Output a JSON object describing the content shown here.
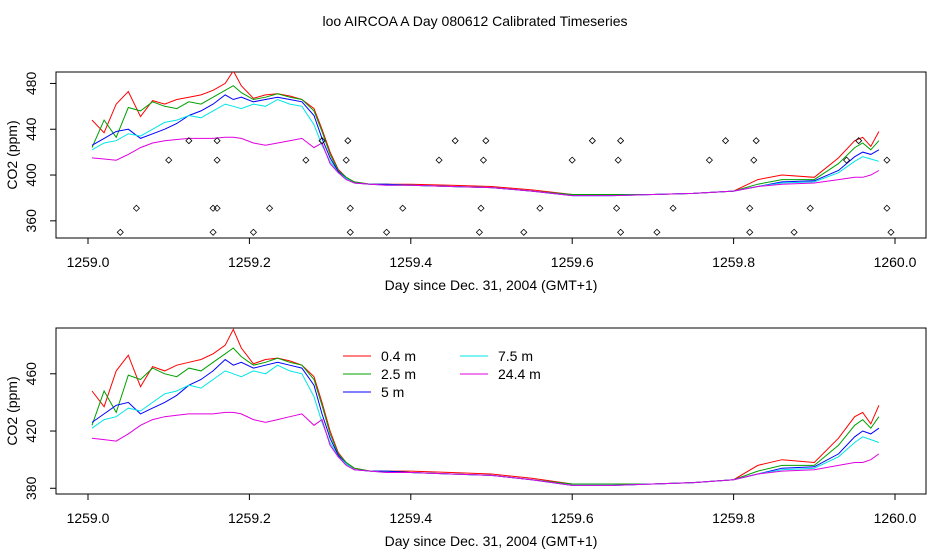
{
  "title": "loo AIRCOA A  Day 080612  Calibrated Timeseries",
  "colors": {
    "0.4 m": "#ff0000",
    "2.5 m": "#00a000",
    "5 m": "#0000ff",
    "7.5 m": "#00e5e5",
    "24.4 m": "#e000e0"
  },
  "chart_data": [
    {
      "type": "line",
      "xlabel": "Day since Dec. 31, 2004 (GMT+1)",
      "ylabel": "CO2 (ppm)",
      "xlim": [
        1259.0,
        1260.0
      ],
      "ylim": [
        345,
        490
      ],
      "xticks": [
        "1259.0",
        "1259.2",
        "1259.4",
        "1259.6",
        "1259.8",
        "1260.0"
      ],
      "yticks": [
        "360",
        "400",
        "440",
        "480"
      ],
      "grid": false,
      "legend": null,
      "series": [
        {
          "name": "0.4 m",
          "x": [
            1259.005,
            1259.02,
            1259.035,
            1259.05,
            1259.065,
            1259.08,
            1259.095,
            1259.11,
            1259.125,
            1259.14,
            1259.155,
            1259.17,
            1259.18,
            1259.19,
            1259.205,
            1259.22,
            1259.235,
            1259.25,
            1259.265,
            1259.28,
            1259.29,
            1259.3,
            1259.31,
            1259.32,
            1259.33,
            1259.35,
            1259.37,
            1259.4,
            1259.45,
            1259.5,
            1259.55,
            1259.6,
            1259.65,
            1259.7,
            1259.75,
            1259.8,
            1259.83,
            1259.86,
            1259.9,
            1259.93,
            1259.95,
            1259.96,
            1259.97,
            1259.98
          ],
          "y": [
            448,
            437,
            462,
            473,
            451,
            465,
            462,
            466,
            468,
            470,
            474,
            480,
            491,
            478,
            467,
            470,
            471,
            469,
            466,
            458,
            440,
            420,
            405,
            398,
            394,
            392,
            392,
            392,
            391,
            390,
            387,
            383,
            383,
            383,
            384,
            386,
            396,
            400,
            398,
            415,
            430,
            433,
            425,
            438
          ]
        },
        {
          "name": "2.5 m",
          "x": [
            1259.005,
            1259.02,
            1259.035,
            1259.05,
            1259.065,
            1259.08,
            1259.095,
            1259.11,
            1259.125,
            1259.14,
            1259.155,
            1259.17,
            1259.18,
            1259.19,
            1259.205,
            1259.22,
            1259.235,
            1259.25,
            1259.265,
            1259.28,
            1259.29,
            1259.3,
            1259.31,
            1259.32,
            1259.33,
            1259.35,
            1259.37,
            1259.4,
            1259.45,
            1259.5,
            1259.55,
            1259.6,
            1259.65,
            1259.7,
            1259.75,
            1259.8,
            1259.83,
            1259.86,
            1259.9,
            1259.93,
            1259.95,
            1259.96,
            1259.97,
            1259.98
          ],
          "y": [
            424,
            448,
            433,
            459,
            456,
            464,
            460,
            458,
            464,
            462,
            468,
            474,
            478,
            472,
            466,
            468,
            471,
            468,
            466,
            456,
            438,
            418,
            404,
            398,
            394,
            392,
            392,
            391,
            390,
            389,
            386,
            383,
            383,
            383,
            384,
            386,
            392,
            396,
            396,
            410,
            424,
            428,
            422,
            430
          ]
        },
        {
          "name": "5 m",
          "x": [
            1259.005,
            1259.02,
            1259.035,
            1259.05,
            1259.065,
            1259.08,
            1259.095,
            1259.11,
            1259.125,
            1259.14,
            1259.155,
            1259.17,
            1259.18,
            1259.19,
            1259.205,
            1259.22,
            1259.235,
            1259.25,
            1259.265,
            1259.28,
            1259.29,
            1259.3,
            1259.31,
            1259.32,
            1259.33,
            1259.35,
            1259.37,
            1259.4,
            1259.45,
            1259.5,
            1259.55,
            1259.6,
            1259.65,
            1259.7,
            1259.75,
            1259.8,
            1259.83,
            1259.86,
            1259.9,
            1259.93,
            1259.95,
            1259.96,
            1259.97,
            1259.98
          ],
          "y": [
            426,
            432,
            438,
            440,
            432,
            436,
            440,
            445,
            452,
            456,
            462,
            470,
            466,
            468,
            464,
            466,
            468,
            466,
            464,
            452,
            432,
            415,
            403,
            397,
            393,
            392,
            392,
            391,
            390,
            389,
            386,
            382,
            382,
            383,
            384,
            386,
            390,
            394,
            395,
            404,
            416,
            420,
            418,
            422
          ]
        },
        {
          "name": "7.5 m",
          "x": [
            1259.005,
            1259.02,
            1259.035,
            1259.05,
            1259.065,
            1259.08,
            1259.095,
            1259.11,
            1259.125,
            1259.14,
            1259.155,
            1259.17,
            1259.18,
            1259.19,
            1259.205,
            1259.22,
            1259.235,
            1259.25,
            1259.265,
            1259.28,
            1259.29,
            1259.3,
            1259.31,
            1259.32,
            1259.33,
            1259.35,
            1259.37,
            1259.4,
            1259.45,
            1259.5,
            1259.55,
            1259.6,
            1259.65,
            1259.7,
            1259.75,
            1259.8,
            1259.83,
            1259.86,
            1259.9,
            1259.93,
            1259.95,
            1259.96,
            1259.97,
            1259.98
          ],
          "y": [
            422,
            428,
            430,
            436,
            434,
            440,
            446,
            448,
            452,
            450,
            456,
            462,
            460,
            458,
            462,
            460,
            466,
            462,
            460,
            444,
            426,
            412,
            402,
            397,
            393,
            392,
            391,
            391,
            390,
            389,
            386,
            382,
            382,
            383,
            384,
            386,
            390,
            393,
            394,
            402,
            412,
            416,
            414,
            412
          ]
        },
        {
          "name": "24.4 m",
          "x": [
            1259.005,
            1259.02,
            1259.035,
            1259.05,
            1259.065,
            1259.08,
            1259.095,
            1259.11,
            1259.125,
            1259.14,
            1259.155,
            1259.17,
            1259.18,
            1259.19,
            1259.205,
            1259.22,
            1259.235,
            1259.25,
            1259.265,
            1259.28,
            1259.29,
            1259.3,
            1259.31,
            1259.32,
            1259.33,
            1259.35,
            1259.37,
            1259.4,
            1259.45,
            1259.5,
            1259.55,
            1259.6,
            1259.65,
            1259.7,
            1259.75,
            1259.8,
            1259.83,
            1259.86,
            1259.9,
            1259.93,
            1259.95,
            1259.96,
            1259.97,
            1259.98
          ],
          "y": [
            415,
            414,
            413,
            418,
            424,
            428,
            430,
            431,
            432,
            432,
            432,
            433,
            433,
            432,
            428,
            426,
            428,
            430,
            432,
            424,
            428,
            410,
            402,
            396,
            393,
            392,
            391,
            391,
            390,
            389,
            386,
            382,
            382,
            383,
            384,
            386,
            390,
            392,
            393,
            396,
            398,
            398,
            400,
            404
          ]
        }
      ],
      "markers": {
        "symbol": "open-diamond",
        "x": [
          1259.04,
          1259.06,
          1259.1,
          1259.125,
          1259.155,
          1259.155,
          1259.16,
          1259.16,
          1259.16,
          1259.205,
          1259.225,
          1259.27,
          1259.29,
          1259.32,
          1259.322,
          1259.325,
          1259.325,
          1259.37,
          1259.39,
          1259.435,
          1259.455,
          1259.485,
          1259.487,
          1259.49,
          1259.493,
          1259.54,
          1259.56,
          1259.6,
          1259.625,
          1259.655,
          1259.657,
          1259.66,
          1259.66,
          1259.705,
          1259.725,
          1259.77,
          1259.79,
          1259.82,
          1259.82,
          1259.825,
          1259.828,
          1259.875,
          1259.895,
          1259.94,
          1259.955,
          1259.99,
          1259.99,
          1259.995
        ],
        "y": [
          350,
          371,
          413,
          430,
          350,
          371,
          413,
          430,
          371,
          350,
          371,
          413,
          430,
          413,
          430,
          371,
          350,
          350,
          371,
          413,
          430,
          350,
          371,
          413,
          430,
          350,
          371,
          413,
          430,
          371,
          413,
          430,
          350,
          350,
          371,
          413,
          430,
          350,
          371,
          413,
          430,
          350,
          371,
          413,
          430,
          413,
          371,
          350
        ]
      }
    },
    {
      "type": "line",
      "xlabel": "Day since Dec. 31, 2004 (GMT+1)",
      "ylabel": "CO2 (ppm)",
      "xlim": [
        1259.0,
        1260.0
      ],
      "ylim": [
        376,
        492
      ],
      "xticks": [
        "1259.0",
        "1259.2",
        "1259.4",
        "1259.6",
        "1259.8",
        "1260.0"
      ],
      "yticks": [
        "380",
        "420",
        "460"
      ],
      "grid": false,
      "legend": {
        "placement": "top-center",
        "entries": [
          "0.4 m",
          "2.5 m",
          "5 m",
          "7.5 m",
          "24.4 m"
        ]
      },
      "series_from_panel": 0
    }
  ]
}
